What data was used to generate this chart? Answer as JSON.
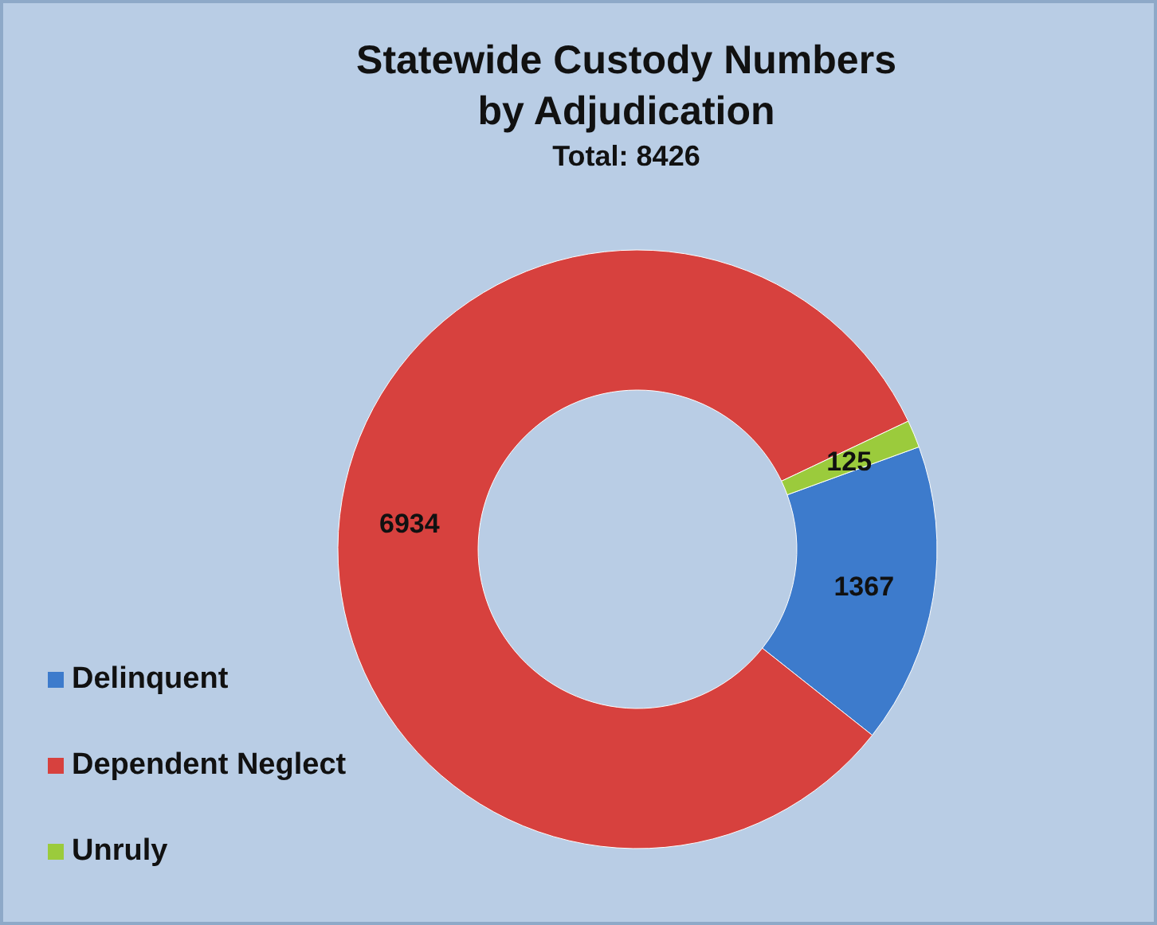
{
  "chart_data": {
    "type": "donut",
    "title": "Statewide Custody Numbers by Adjudication",
    "subtitle": "Total: 8426",
    "categories": [
      "Delinquent",
      "Dependent Neglect",
      "Unruly"
    ],
    "values": [
      1367,
      6934,
      125
    ],
    "colors": [
      "#3d7bcc",
      "#d7413e",
      "#9bcb3c"
    ],
    "data_labels": true,
    "legend": "bottom left"
  }
}
